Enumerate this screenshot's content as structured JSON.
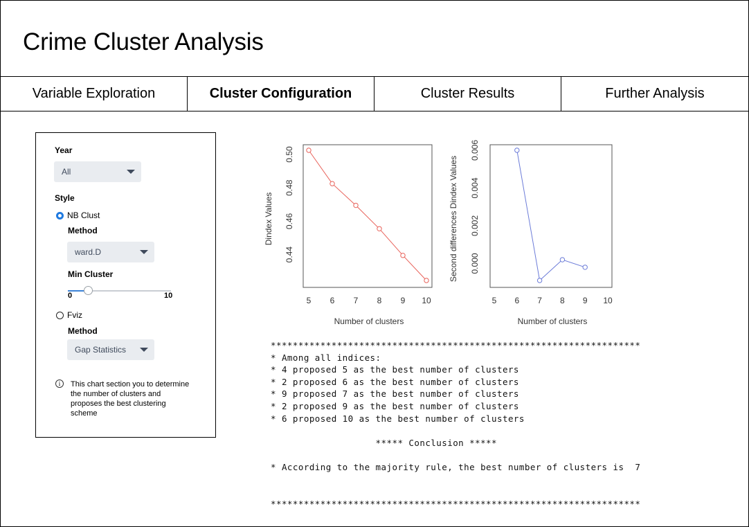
{
  "app": {
    "title": "Crime Cluster Analysis"
  },
  "tabs": [
    {
      "label": "Variable Exploration",
      "active": false
    },
    {
      "label": "Cluster Configuration",
      "active": true
    },
    {
      "label": "Cluster Results",
      "active": false
    },
    {
      "label": "Further Analysis",
      "active": false
    }
  ],
  "sidebar": {
    "year_label": "Year",
    "year_value": "All",
    "style_label": "Style",
    "option_nbclust": "NB Clust",
    "nbclust_method_label": "Method",
    "nbclust_method_value": "ward.D",
    "min_cluster_label": "Min Cluster",
    "slider": {
      "min_label": "0",
      "max_label": "10",
      "value_fraction": 0.2
    },
    "option_fviz": "Fviz",
    "fviz_method_label": "Method",
    "fviz_method_value": "Gap Statistics",
    "info_text": "This chart section you to determine the number of clusters and proposes the best clustering scheme",
    "selected_style": "NB Clust"
  },
  "chart_data": [
    {
      "type": "line",
      "title": "",
      "xlabel": "Number of clusters",
      "ylabel": "Dindex Values",
      "x": [
        5,
        6,
        7,
        8,
        9,
        10
      ],
      "series": [
        {
          "values": [
            0.5025,
            0.4825,
            0.4695,
            0.4555,
            0.4395,
            0.4245
          ],
          "color": "#e8625a"
        }
      ],
      "xlim": [
        5,
        10
      ],
      "ylim": [
        0.4245,
        0.5025
      ],
      "xticks": [
        "5",
        "6",
        "7",
        "8",
        "9",
        "10"
      ],
      "yticks": [
        "0.44",
        "0.46",
        "0.48",
        "0.50"
      ],
      "ytick_values": [
        0.44,
        0.46,
        0.48,
        0.5
      ],
      "grid": false
    },
    {
      "type": "line",
      "title": "",
      "xlabel": "Number of clusters",
      "ylabel": "Second differences Dindex Values",
      "x": [
        6,
        7,
        8,
        9
      ],
      "series": [
        {
          "values": [
            0.006,
            -0.0009,
            0.0002,
            -0.0002
          ],
          "color": "#6b7bd8"
        }
      ],
      "xlim": [
        5,
        10
      ],
      "ylim": [
        -0.0009,
        0.006
      ],
      "xticks": [
        "5",
        "6",
        "7",
        "8",
        "9",
        "10"
      ],
      "yticks": [
        "0.000",
        "0.002",
        "0.004",
        "0.006"
      ],
      "ytick_values": [
        0,
        0.002,
        0.004,
        0.006
      ],
      "grid": false
    }
  ],
  "console": {
    "lines": [
      "*******************************************************************",
      "* Among all indices:",
      "* 4 proposed 5 as the best number of clusters",
      "* 2 proposed 6 as the best number of clusters",
      "* 9 proposed 7 as the best number of clusters",
      "* 2 proposed 9 as the best number of clusters",
      "* 6 proposed 10 as the best number of clusters",
      "",
      "                   ***** Conclusion *****",
      "",
      "* According to the majority rule, the best number of clusters is  7",
      "",
      "",
      "*******************************************************************"
    ]
  },
  "colors": {
    "accent": "#1f7ae0",
    "series1": "#e8625a",
    "series2": "#6b7bd8",
    "select_bg": "#e9ecf0"
  }
}
